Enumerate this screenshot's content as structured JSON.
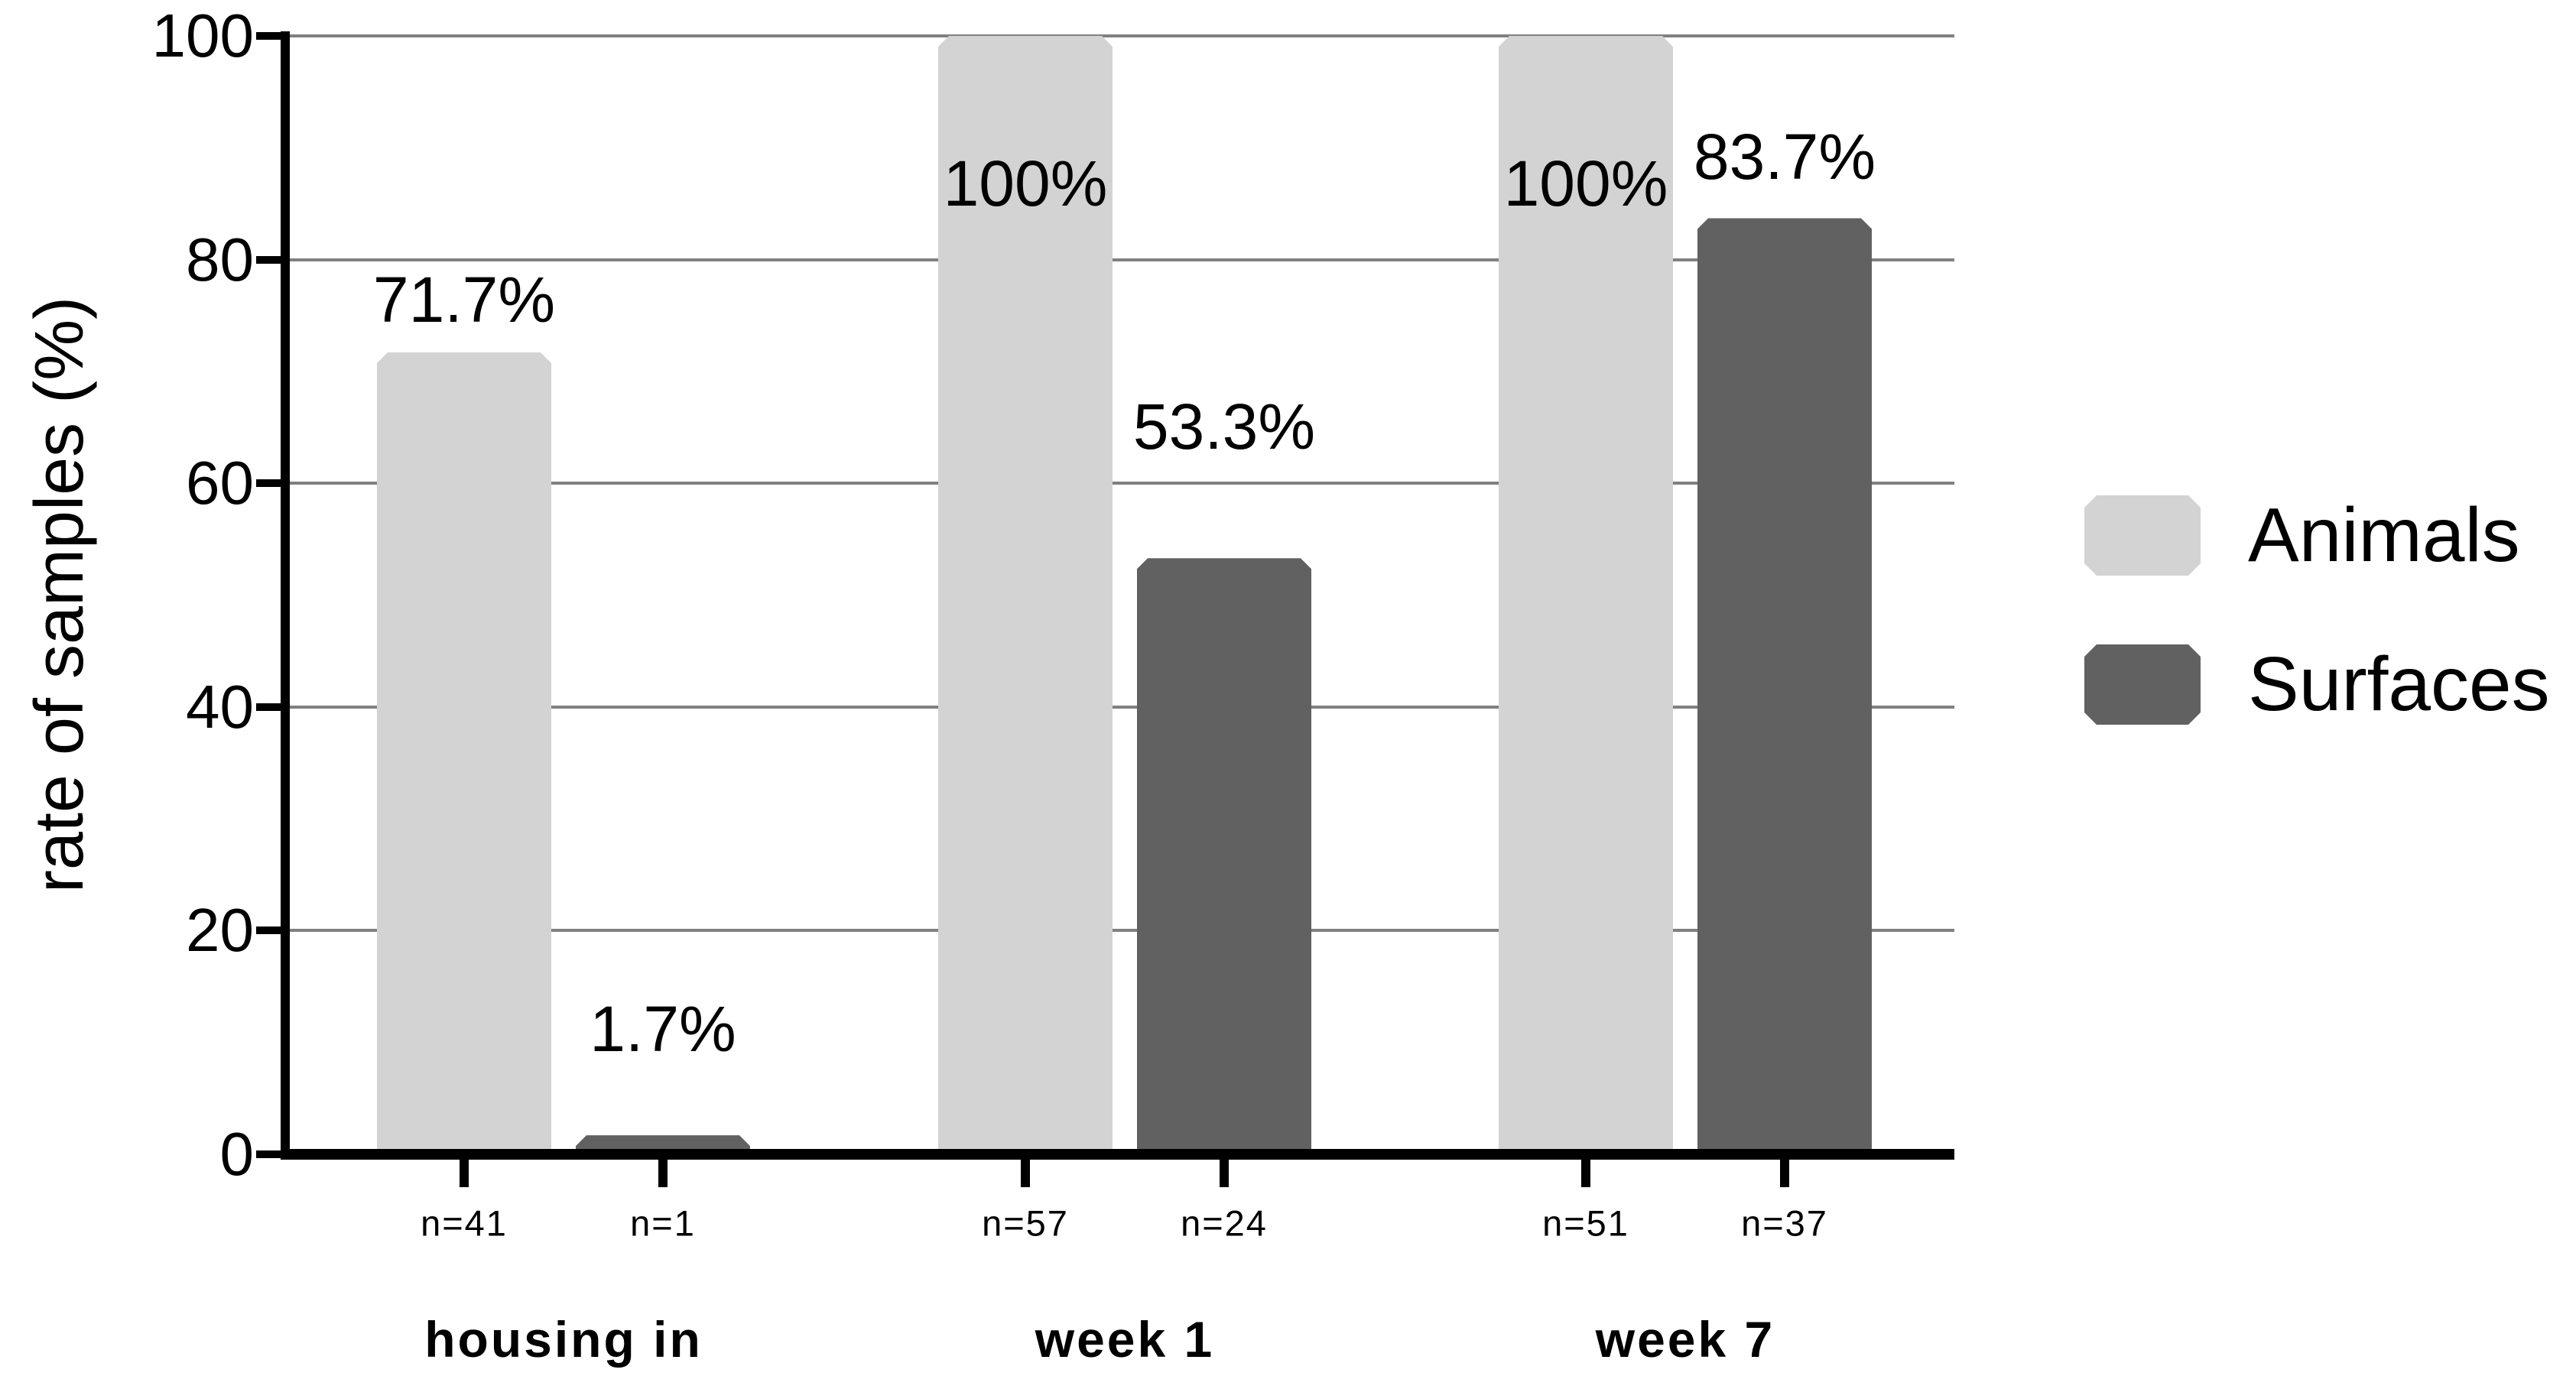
{
  "chart_data": {
    "type": "bar",
    "title": "",
    "xlabel": "",
    "ylabel": "rate of samples (%)",
    "ylim": [
      0,
      100
    ],
    "yticks": [
      0,
      20,
      40,
      60,
      80,
      100
    ],
    "grid": "horizontal gridlines at 20/40/60/80/100",
    "legend_position": "right",
    "categories": [
      "housing in",
      "week 1",
      "week 7"
    ],
    "series": [
      {
        "name": "Animals",
        "color": "#d3d3d3",
        "values": [
          71.7,
          100,
          100
        ],
        "value_labels": [
          "71.7%",
          "100%",
          "100%"
        ],
        "n": [
          41,
          57,
          51
        ],
        "n_labels": [
          "n=41",
          "n=57",
          "n=51"
        ]
      },
      {
        "name": "Surfaces",
        "color": "#616161",
        "values": [
          1.7,
          53.3,
          83.7
        ],
        "value_labels": [
          "1.7%",
          "53.3%",
          "83.7%"
        ],
        "n": [
          1,
          24,
          37
        ],
        "n_labels": [
          "n=1",
          "n=24",
          "n=37"
        ]
      }
    ]
  },
  "colors": {
    "background": "#ffffff",
    "axis": "#000000",
    "gridline": "#808080",
    "text": "#000000",
    "animals_bar": "#d3d3d3",
    "surfaces_bar": "#616161"
  }
}
